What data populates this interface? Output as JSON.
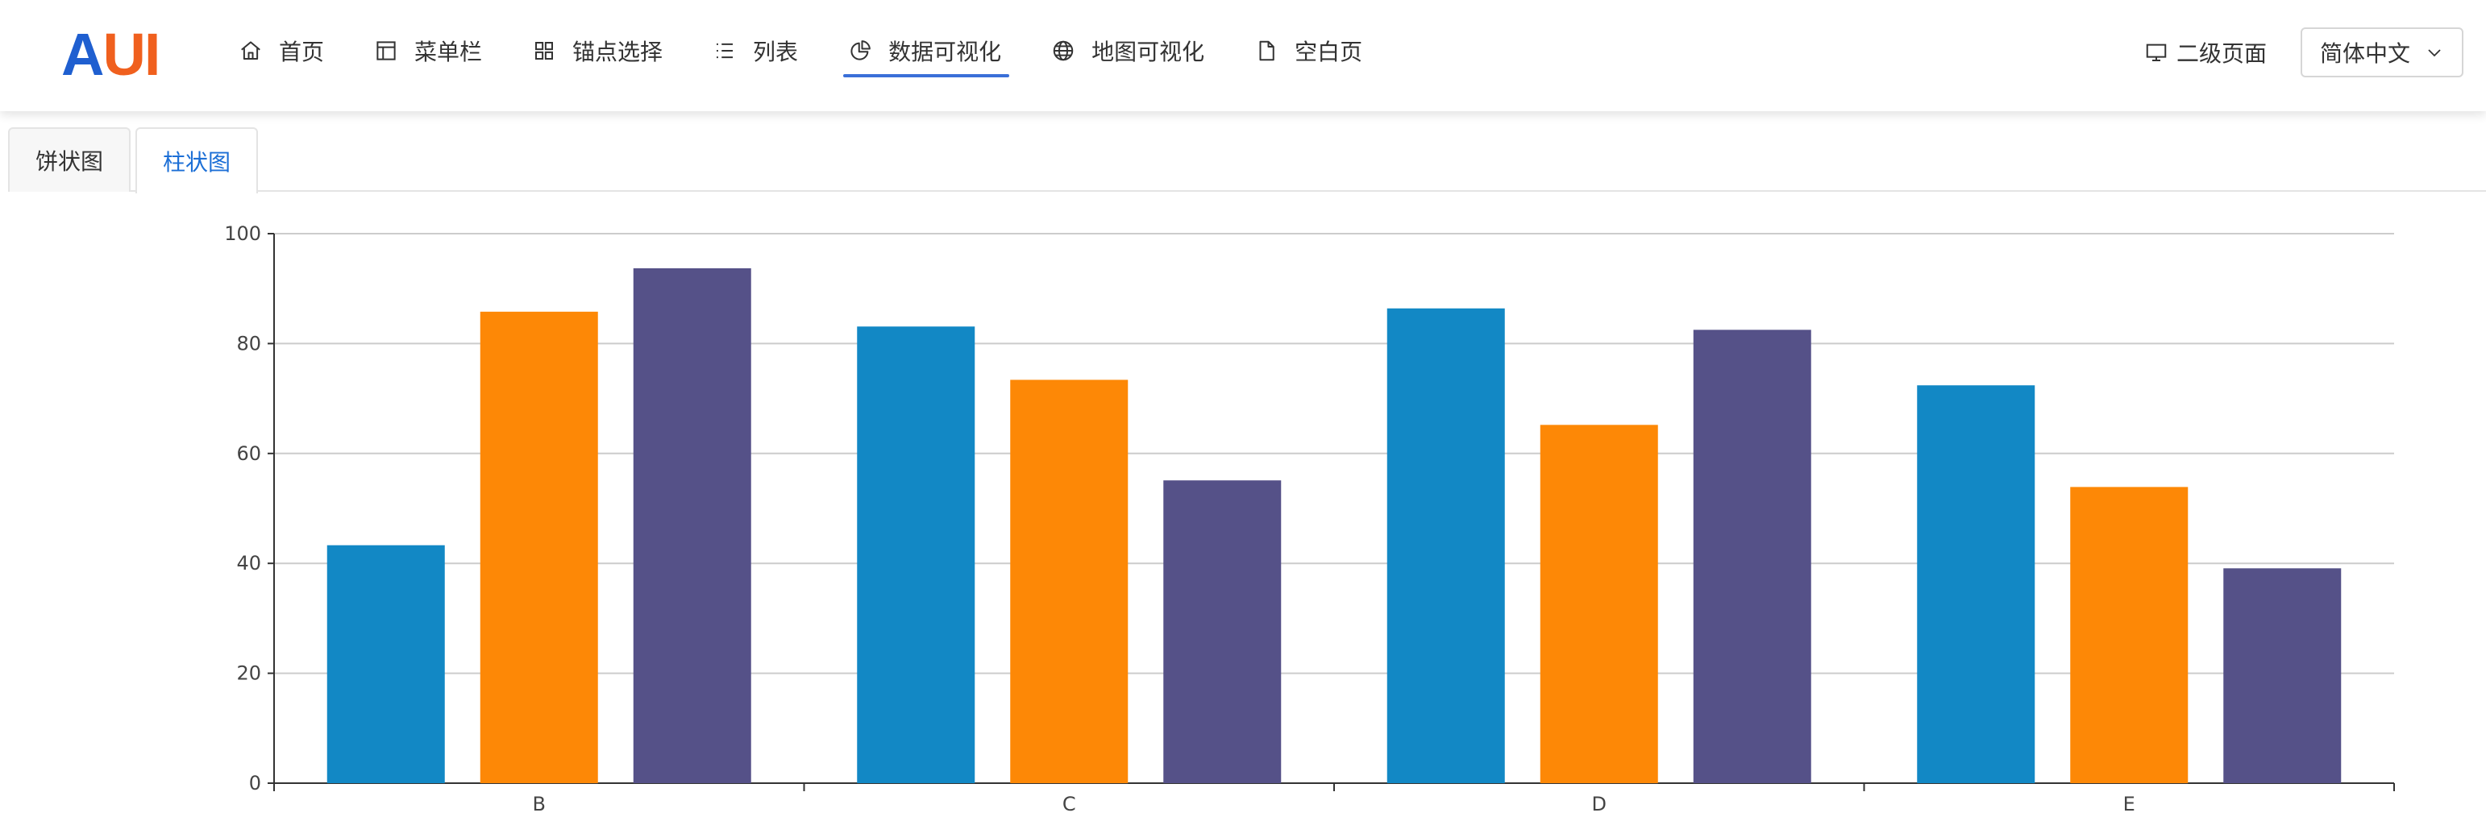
{
  "header": {
    "logo": {
      "part1": "A",
      "part2": "UI"
    },
    "nav": [
      {
        "label": "首页",
        "icon": "home-icon"
      },
      {
        "label": "菜单栏",
        "icon": "layout-icon"
      },
      {
        "label": "锚点选择",
        "icon": "grid-icon"
      },
      {
        "label": "列表",
        "icon": "list-icon"
      },
      {
        "label": "数据可视化",
        "icon": "pie-chart-icon",
        "active": true
      },
      {
        "label": "地图可视化",
        "icon": "globe-icon"
      },
      {
        "label": "空白页",
        "icon": "file-icon"
      }
    ],
    "secondary_page": {
      "label": "二级页面",
      "icon": "monitor-icon"
    },
    "language": {
      "selected": "简体中文",
      "icon": "chevron-down-icon"
    },
    "accent_color": "#3a6fd8"
  },
  "tabs": [
    {
      "label": "饼状图",
      "active": false
    },
    {
      "label": "柱状图",
      "active": true
    }
  ],
  "chart_data": {
    "type": "bar",
    "categories": [
      "B",
      "C",
      "D",
      "E"
    ],
    "series": [
      {
        "values": [
          43.3,
          83.1,
          86.4,
          72.4
        ],
        "color": "#1288c5"
      },
      {
        "values": [
          85.8,
          73.4,
          65.2,
          53.9
        ],
        "color": "#fd8806"
      },
      {
        "values": [
          93.7,
          55.1,
          82.5,
          39.1
        ],
        "color": "#555188"
      }
    ],
    "ylim": [
      0,
      100
    ],
    "yticks": [
      0,
      20,
      40,
      60,
      80,
      100
    ],
    "grid": true,
    "legend": "none"
  }
}
